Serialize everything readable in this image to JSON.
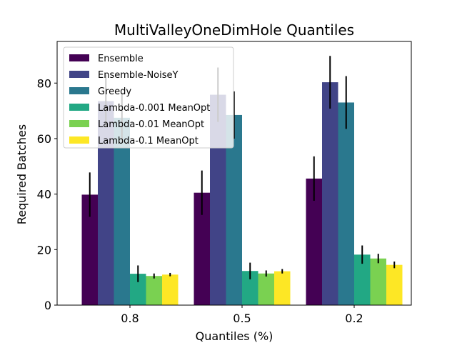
{
  "chart_data": {
    "type": "bar",
    "title": "MultiValleyOneDimHole Quantiles",
    "xlabel": "Quantiles (%)",
    "ylabel": "Required Batches",
    "categories": [
      "0.8",
      "0.5",
      "0.2"
    ],
    "ylim": [
      0,
      95
    ],
    "yticks": [
      0,
      20,
      40,
      60,
      80
    ],
    "legend_position": "top-left",
    "series": [
      {
        "name": "Ensemble",
        "color": "#440154",
        "values": [
          39.8,
          40.5,
          45.6
        ],
        "errors": [
          8.0,
          8.0,
          8.0
        ]
      },
      {
        "name": "Ensemble-NoiseY",
        "color": "#414487",
        "values": [
          73.5,
          75.8,
          80.3
        ],
        "errors": [
          9.5,
          9.8,
          9.5
        ]
      },
      {
        "name": "Greedy",
        "color": "#2a788e",
        "values": [
          67.5,
          68.5,
          73.0
        ],
        "errors": [
          9.0,
          8.5,
          9.5
        ]
      },
      {
        "name": "Lambda-0.001 MeanOpt",
        "color": "#22a884",
        "values": [
          11.3,
          12.3,
          18.2
        ],
        "errors": [
          3.0,
          3.0,
          3.3
        ]
      },
      {
        "name": "Lambda-0.01 MeanOpt",
        "color": "#7ad151",
        "values": [
          10.5,
          11.4,
          16.8
        ],
        "errors": [
          0.9,
          1.1,
          1.7
        ]
      },
      {
        "name": "Lambda-0.1 MeanOpt",
        "color": "#fde725",
        "values": [
          11.0,
          12.2,
          14.5
        ],
        "errors": [
          0.6,
          0.8,
          1.2
        ]
      }
    ]
  }
}
